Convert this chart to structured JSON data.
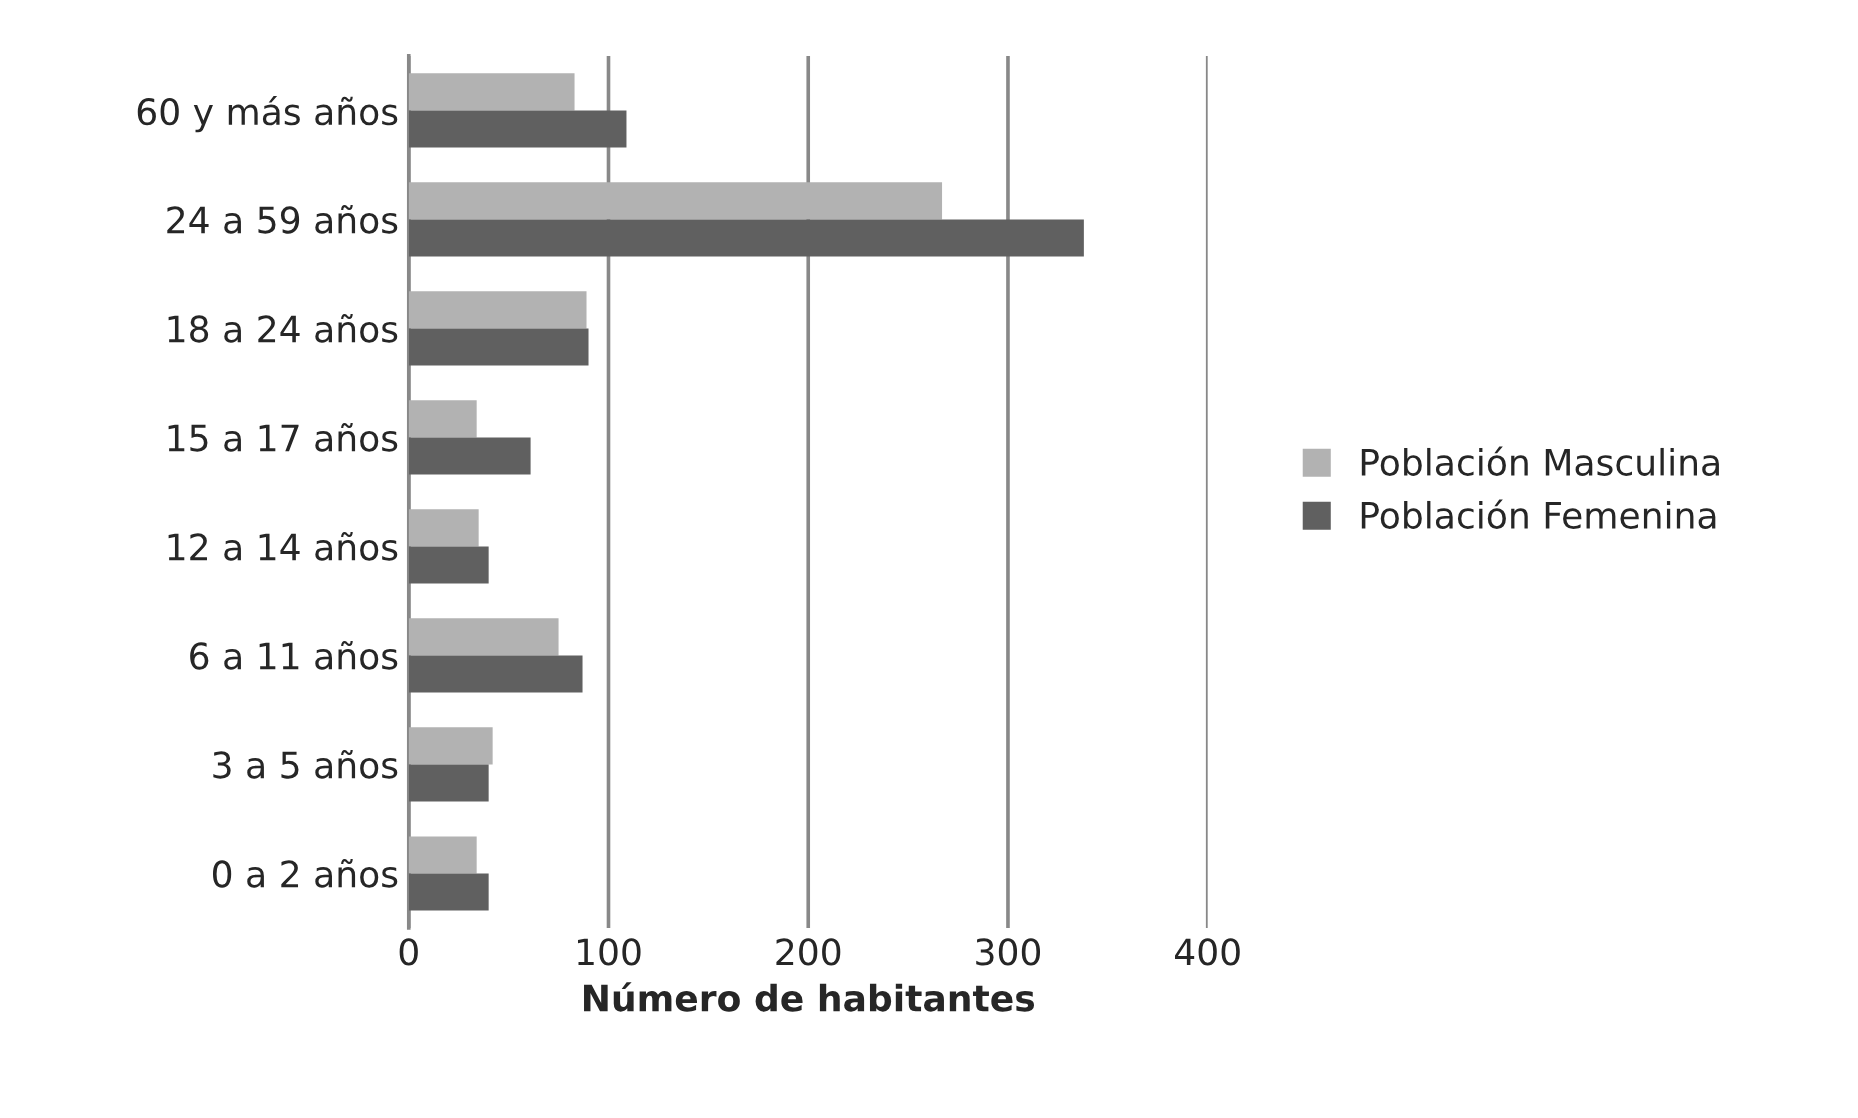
{
  "chart_data": {
    "type": "bar",
    "orientation": "horizontal",
    "xlabel": "Número de habitantes",
    "categories": [
      "60 y más años",
      "24 a 59 años",
      "18 a 24 años",
      "15 a 17 años",
      "12 a 14 años",
      "6 a 11 años",
      "3 a 5 años",
      "0 a 2 años"
    ],
    "series": [
      {
        "name": "Población Masculina",
        "color": "#b2b2b2",
        "values": [
          83,
          267,
          89,
          34,
          35,
          75,
          42,
          34
        ]
      },
      {
        "name": "Población Femenina",
        "color": "#606060",
        "values": [
          109,
          338,
          90,
          61,
          40,
          87,
          40,
          40
        ]
      }
    ],
    "xlim": [
      0,
      400
    ],
    "xticks": [
      0,
      100,
      200,
      300,
      400
    ],
    "grid": "x",
    "legend": "right"
  }
}
